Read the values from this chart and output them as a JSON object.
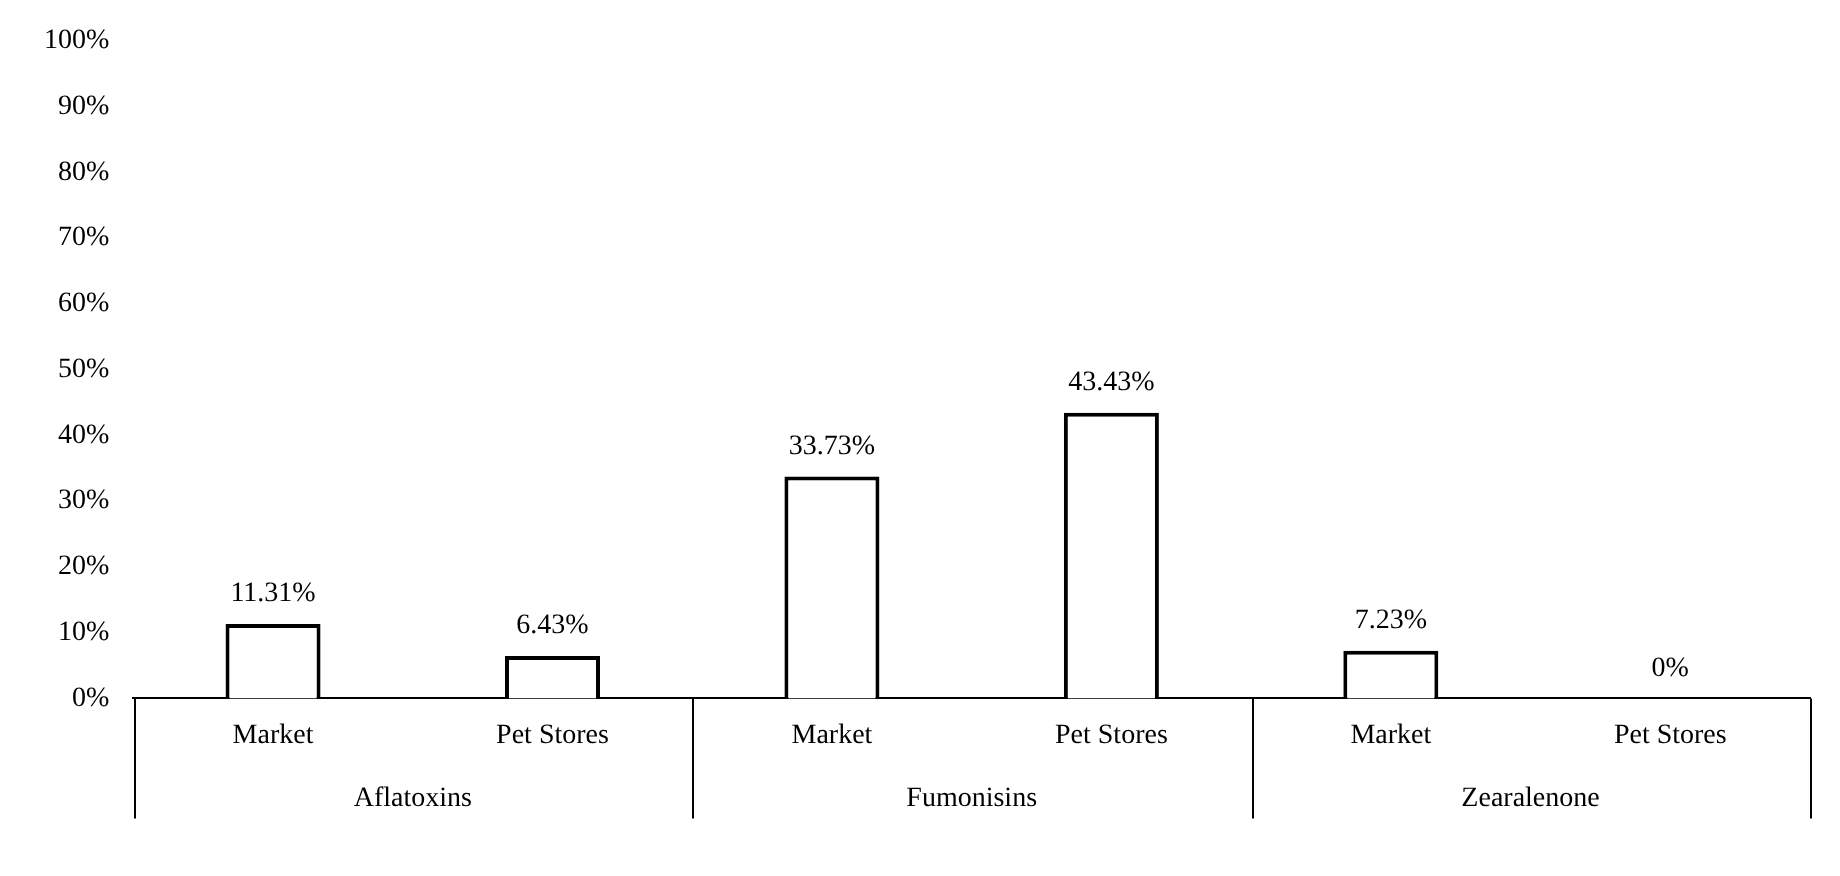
{
  "chart_data": {
    "type": "bar",
    "categories": [
      "Market",
      "Pet Stores",
      "Market",
      "Pet Stores",
      "Market",
      "Pet Stores"
    ],
    "values": [
      11.31,
      6.43,
      33.73,
      43.43,
      7.23,
      0
    ],
    "value_labels": [
      "11.31%",
      "6.43%",
      "33.73%",
      "43.43%",
      "7.23%",
      "0%"
    ],
    "color": "#ffffff",
    "ylim": [
      0,
      100
    ],
    "yticks": [
      {
        "value": 0,
        "label": "0%"
      },
      {
        "value": 10,
        "label": "10%"
      },
      {
        "value": 20,
        "label": "20%"
      },
      {
        "value": 30,
        "label": "30%"
      },
      {
        "value": 40,
        "label": "40%"
      },
      {
        "value": 50,
        "label": "50%"
      },
      {
        "value": 60,
        "label": "60%"
      },
      {
        "value": 70,
        "label": "70%"
      },
      {
        "value": 80,
        "label": "80%"
      },
      {
        "value": 90,
        "label": "90%"
      },
      {
        "value": 100,
        "label": "100%"
      }
    ],
    "annotations": [
      "Aflatoxins",
      "Fumonisins",
      "Zearalenone"
    ],
    "grid": false,
    "legend": false
  }
}
